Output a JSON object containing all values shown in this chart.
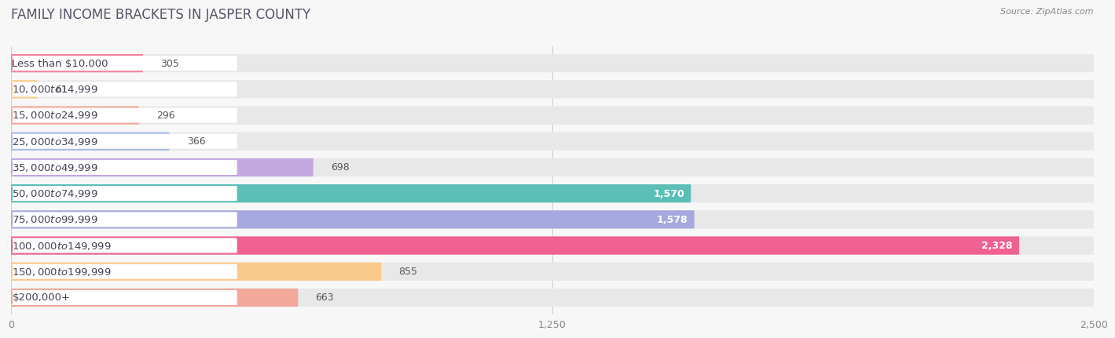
{
  "title": "Family Income Brackets in Jasper County",
  "source": "Source: ZipAtlas.com",
  "categories": [
    "Less than $10,000",
    "$10,000 to $14,999",
    "$15,000 to $24,999",
    "$25,000 to $34,999",
    "$35,000 to $49,999",
    "$50,000 to $74,999",
    "$75,000 to $99,999",
    "$100,000 to $149,999",
    "$150,000 to $199,999",
    "$200,000+"
  ],
  "values": [
    305,
    61,
    296,
    366,
    698,
    1570,
    1578,
    2328,
    855,
    663
  ],
  "bar_colors": [
    "#F4829E",
    "#F9C98A",
    "#F2A89A",
    "#A8BAE8",
    "#C4A8E0",
    "#5BBFB8",
    "#A8A8E0",
    "#F06090",
    "#F9C98A",
    "#F2A89A"
  ],
  "background_color": "#f7f7f7",
  "bar_bg_color": "#e8e8e8",
  "label_bg_color": "#ffffff",
  "xlim": [
    0,
    2500
  ],
  "xticks": [
    0,
    1250,
    2500
  ],
  "title_fontsize": 12,
  "label_fontsize": 9.5,
  "value_fontsize": 9,
  "value_inside_threshold": 1400
}
